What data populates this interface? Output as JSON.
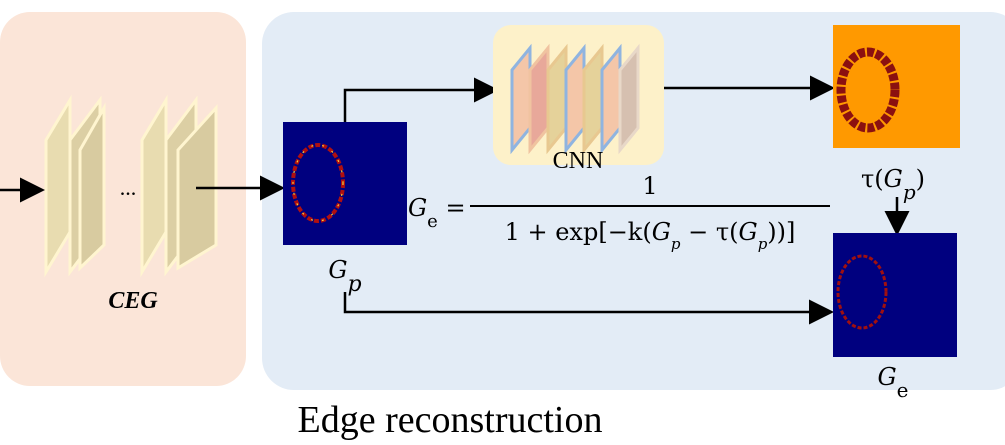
{
  "ellipsis": "...",
  "ceg_label": "CEG",
  "cnn_label": "CNN",
  "gp_label": [
    "G",
    "p"
  ],
  "tau_label": [
    "τ(",
    "G",
    "p",
    ")"
  ],
  "ge_label": [
    "G",
    "e"
  ],
  "formula": {
    "lhs": [
      "G",
      "e",
      " ="
    ],
    "numerator": "1",
    "denominator": [
      "1 + exp[−k(",
      "G",
      "p",
      " − τ(",
      "G",
      "p",
      "))]"
    ]
  },
  "caption": "Edge reconstruction"
}
